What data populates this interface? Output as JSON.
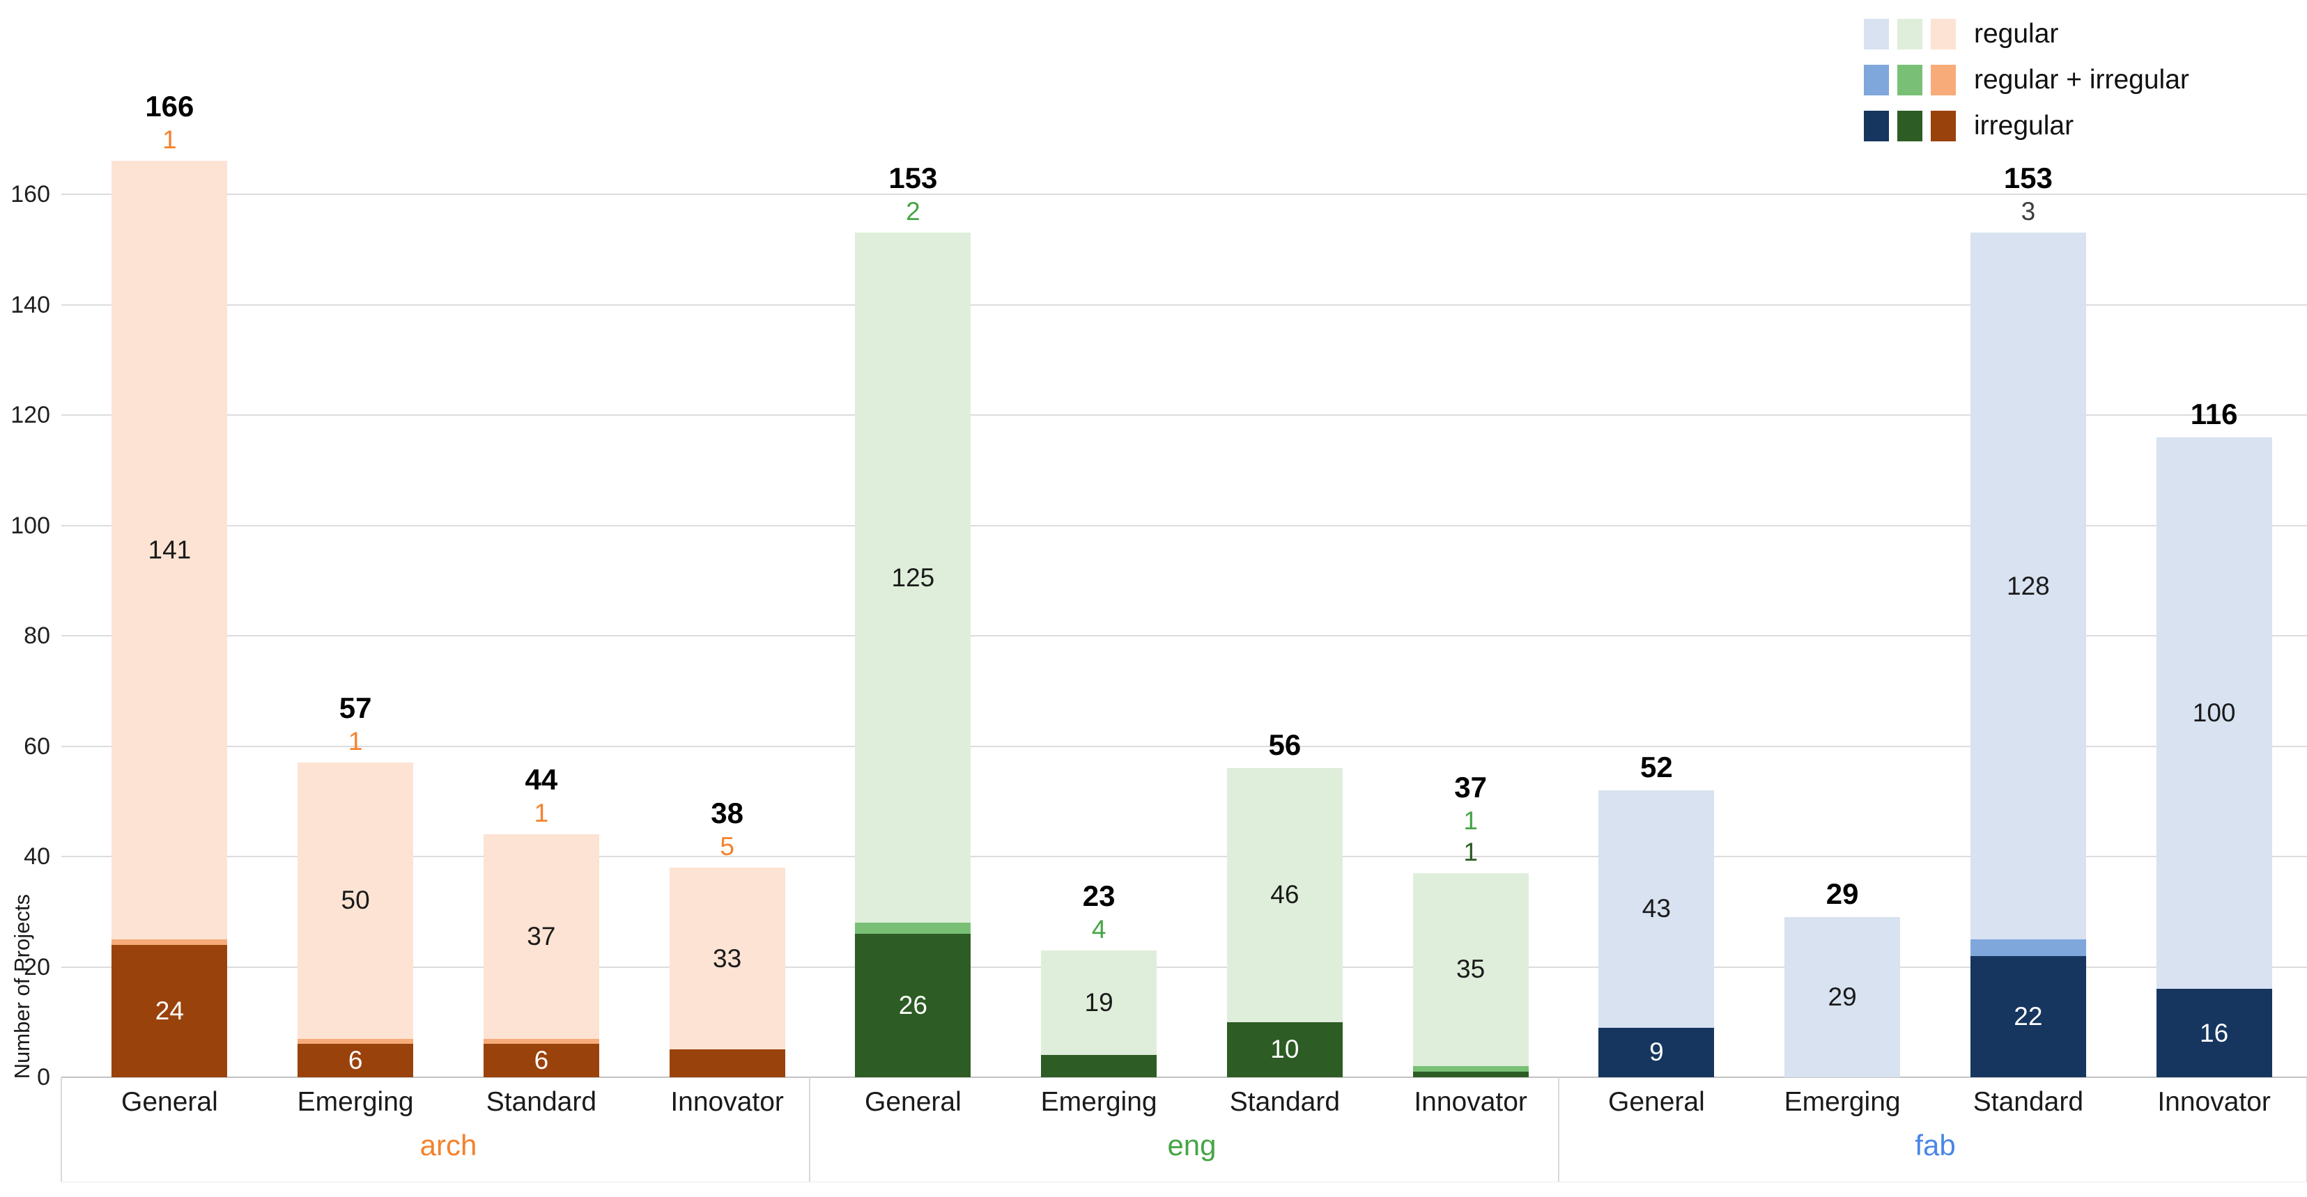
{
  "y_axis": {
    "title": "Number of Projects"
  },
  "legend": {
    "rows": [
      {
        "label": "regular",
        "swatches": [
          "#d8e2f1",
          "#dfeeda",
          "#fce3d3"
        ]
      },
      {
        "label": "regular + irregular",
        "swatches": [
          "#7fa7db",
          "#79c076",
          "#f7ab78"
        ]
      },
      {
        "label": "irregular",
        "swatches": [
          "#16365f",
          "#2d5c24",
          "#9a420c"
        ]
      }
    ]
  },
  "chart_data": {
    "type": "bar",
    "stacked": true,
    "title": "",
    "xlabel": "",
    "ylabel": "Number of Projects",
    "ylim": [
      0,
      160
    ],
    "yticks": [
      0,
      20,
      40,
      60,
      80,
      100,
      120,
      140,
      160
    ],
    "grid": "horizontal",
    "legend_position": "top-right",
    "series_order": [
      "irregular",
      "regular_irregular",
      "regular"
    ],
    "legend_entries": [
      "regular",
      "regular + irregular",
      "irregular"
    ],
    "categories": [
      "General",
      "Emerging",
      "Standard",
      "Innovator"
    ],
    "groups": [
      {
        "name": "arch",
        "accent": "#f4822c",
        "colors": {
          "regular": "#fce3d3",
          "regular_irregular": "#f7ab78",
          "irregular": "#9a420c"
        },
        "bars": [
          {
            "category": "General",
            "total": 166,
            "irregular": 24,
            "regular_irregular": 1,
            "regular": 141,
            "outside_labels": [
              {
                "text": "1",
                "color": "#f4822c"
              }
            ]
          },
          {
            "category": "Emerging",
            "total": 57,
            "irregular": 6,
            "regular_irregular": 1,
            "regular": 50,
            "outside_labels": [
              {
                "text": "1",
                "color": "#f4822c"
              }
            ]
          },
          {
            "category": "Standard",
            "total": 44,
            "irregular": 6,
            "regular_irregular": 1,
            "regular": 37,
            "outside_labels": [
              {
                "text": "1",
                "color": "#f4822c"
              }
            ]
          },
          {
            "category": "Innovator",
            "total": 38,
            "irregular": 5,
            "regular_irregular": 0,
            "regular": 33,
            "outside_labels": [
              {
                "text": "5",
                "color": "#f4822c"
              }
            ]
          }
        ]
      },
      {
        "name": "eng",
        "accent": "#46a546",
        "colors": {
          "regular": "#dfeeda",
          "regular_irregular": "#79c076",
          "irregular": "#2d5c24"
        },
        "bars": [
          {
            "category": "General",
            "total": 153,
            "irregular": 26,
            "regular_irregular": 2,
            "regular": 125,
            "outside_labels": [
              {
                "text": "2",
                "color": "#46a546"
              }
            ]
          },
          {
            "category": "Emerging",
            "total": 23,
            "irregular": 4,
            "regular_irregular": 0,
            "regular": 19,
            "outside_labels": [
              {
                "text": "4",
                "color": "#46a546"
              }
            ]
          },
          {
            "category": "Standard",
            "total": 56,
            "irregular": 10,
            "regular_irregular": 0,
            "regular": 46,
            "outside_labels": []
          },
          {
            "category": "Innovator",
            "total": 37,
            "irregular": 1,
            "regular_irregular": 1,
            "regular": 35,
            "outside_labels": [
              {
                "text": "1",
                "color": "#46a546"
              },
              {
                "text": "1",
                "color": "#2d5c24"
              }
            ]
          }
        ]
      },
      {
        "name": "fab",
        "accent": "#4a86e8",
        "colors": {
          "regular": "#d8e2f1",
          "regular_irregular": "#7fa7db",
          "irregular": "#16365f"
        },
        "bars": [
          {
            "category": "General",
            "total": 52,
            "irregular": 9,
            "regular_irregular": 0,
            "regular": 43,
            "outside_labels": []
          },
          {
            "category": "Emerging",
            "total": 29,
            "irregular": 0,
            "regular_irregular": 0,
            "regular": 29,
            "outside_labels": []
          },
          {
            "category": "Standard",
            "total": 153,
            "irregular": 22,
            "regular_irregular": 3,
            "regular": 128,
            "outside_labels": [
              {
                "text": "3",
                "color": "#3d3d3d"
              }
            ]
          },
          {
            "category": "Innovator",
            "total": 116,
            "irregular": 16,
            "regular_irregular": 0,
            "regular": 100,
            "outside_labels": []
          }
        ]
      }
    ]
  }
}
